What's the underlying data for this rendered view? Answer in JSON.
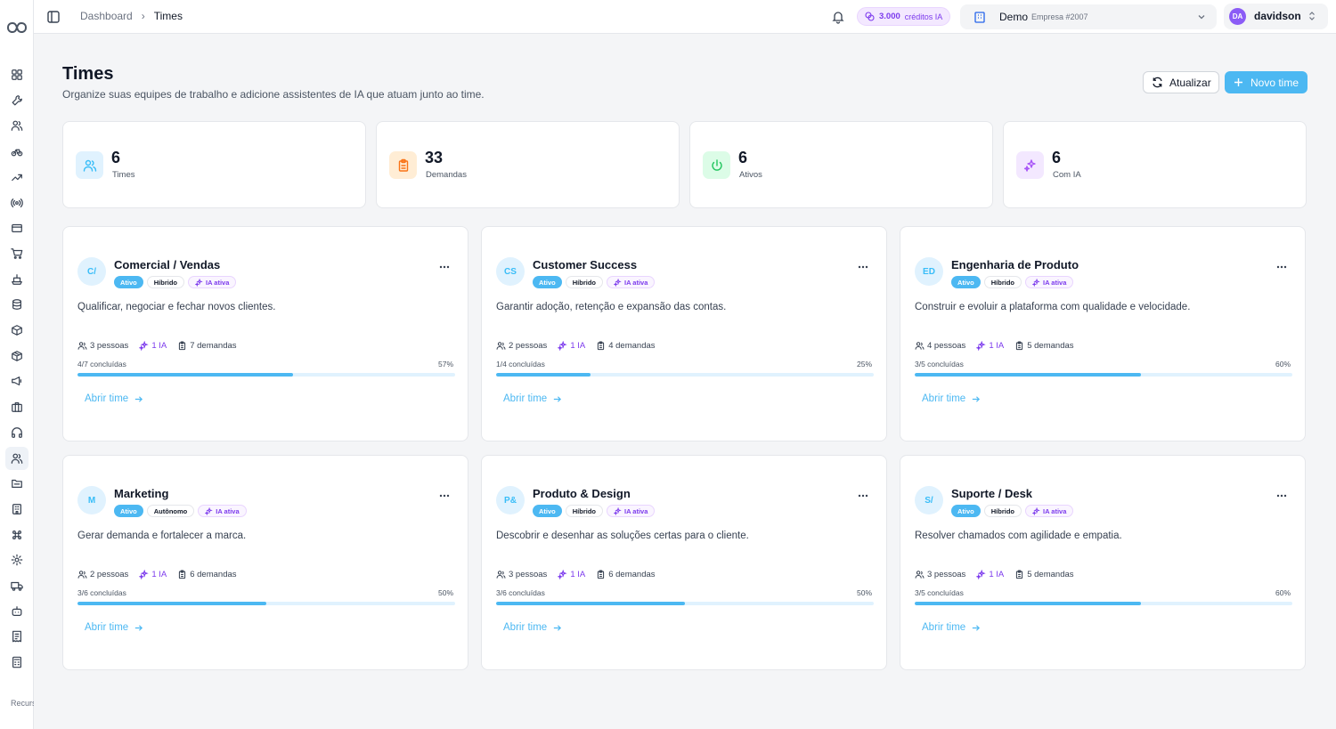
{
  "sidebar": {
    "icons": [
      "grid-icon",
      "wrench-icon",
      "users-icon",
      "bike-icon",
      "trending-icon",
      "radio-icon",
      "card-icon",
      "cart-icon",
      "ship-icon",
      "database-icon",
      "box-icon",
      "package-icon",
      "megaphone-icon",
      "briefcase-icon",
      "headphones-icon",
      "team-icon",
      "folder-icon",
      "building-icon",
      "command-icon",
      "settings-icon",
      "truck-icon",
      "bot-icon",
      "receipt-icon",
      "calculator-icon"
    ],
    "active_index": 15,
    "footer_text": "Recursos avançados"
  },
  "topbar": {
    "breadcrumb": {
      "home": "Dashboard",
      "separator": "›",
      "current": "Times"
    },
    "credits": {
      "value": "3.000",
      "label": "créditos IA"
    },
    "company": {
      "name": "Demo",
      "sub": "Empresa #2007"
    },
    "user": {
      "initials": "DA",
      "name": "davidson"
    }
  },
  "header": {
    "title": "Times",
    "subtitle": "Organize suas equipes de trabalho e adicione assistentes de IA que atuam junto ao time.",
    "refresh_label": "Atualizar",
    "new_label": "Novo time"
  },
  "stats": [
    {
      "value": "6",
      "label": "Times",
      "icon": "users-icon",
      "bg": "#e0f2fe",
      "fg": "#38bdf8"
    },
    {
      "value": "33",
      "label": "Demandas",
      "icon": "clipboard-icon",
      "bg": "#ffedd5",
      "fg": "#f97316"
    },
    {
      "value": "6",
      "label": "Ativos",
      "icon": "power-icon",
      "bg": "#dcfce7",
      "fg": "#22c55e"
    },
    {
      "value": "6",
      "label": "Com IA",
      "icon": "sparkles-icon",
      "bg": "#f3e8ff",
      "fg": "#a855f7"
    }
  ],
  "teams": [
    {
      "abbr": "C/",
      "name": "Comercial / Vendas",
      "status": "Ativo",
      "mode": "Híbrido",
      "ai": "IA ativa",
      "description": "Qualificar, negociar e fechar novos clientes.",
      "people": "3 pessoas",
      "ia": "1 IA",
      "demands": "7 demandas",
      "done": "4/7 concluídas",
      "pct": "57%",
      "progress": 0.57,
      "open": "Abrir time"
    },
    {
      "abbr": "CS",
      "name": "Customer Success",
      "status": "Ativo",
      "mode": "Híbrido",
      "ai": "IA ativa",
      "description": "Garantir adoção, retenção e expansão das contas.",
      "people": "2 pessoas",
      "ia": "1 IA",
      "demands": "4 demandas",
      "done": "1/4 concluídas",
      "pct": "25%",
      "progress": 0.25,
      "open": "Abrir time"
    },
    {
      "abbr": "ED",
      "name": "Engenharia de Produto",
      "status": "Ativo",
      "mode": "Híbrido",
      "ai": "IA ativa",
      "description": "Construir e evoluir a plataforma com qualidade e velocidade.",
      "people": "4 pessoas",
      "ia": "1 IA",
      "demands": "5 demandas",
      "done": "3/5 concluídas",
      "pct": "60%",
      "progress": 0.6,
      "open": "Abrir time"
    },
    {
      "abbr": "M",
      "name": "Marketing",
      "status": "Ativo",
      "mode": "Autônomo",
      "ai": "IA ativa",
      "description": "Gerar demanda e fortalecer a marca.",
      "people": "2 pessoas",
      "ia": "1 IA",
      "demands": "6 demandas",
      "done": "3/6 concluídas",
      "pct": "50%",
      "progress": 0.5,
      "open": "Abrir time"
    },
    {
      "abbr": "P&",
      "name": "Produto & Design",
      "status": "Ativo",
      "mode": "Híbrido",
      "ai": "IA ativa",
      "description": "Descobrir e desenhar as soluções certas para o cliente.",
      "people": "3 pessoas",
      "ia": "1 IA",
      "demands": "6 demandas",
      "done": "3/6 concluídas",
      "pct": "50%",
      "progress": 0.5,
      "open": "Abrir time"
    },
    {
      "abbr": "S/",
      "name": "Suporte / Desk",
      "status": "Ativo",
      "mode": "Híbrido",
      "ai": "IA ativa",
      "description": "Resolver chamados com agilidade e empatia.",
      "people": "3 pessoas",
      "ia": "1 IA",
      "demands": "5 demandas",
      "done": "3/5 concluídas",
      "pct": "60%",
      "progress": 0.6,
      "open": "Abrir time"
    }
  ]
}
